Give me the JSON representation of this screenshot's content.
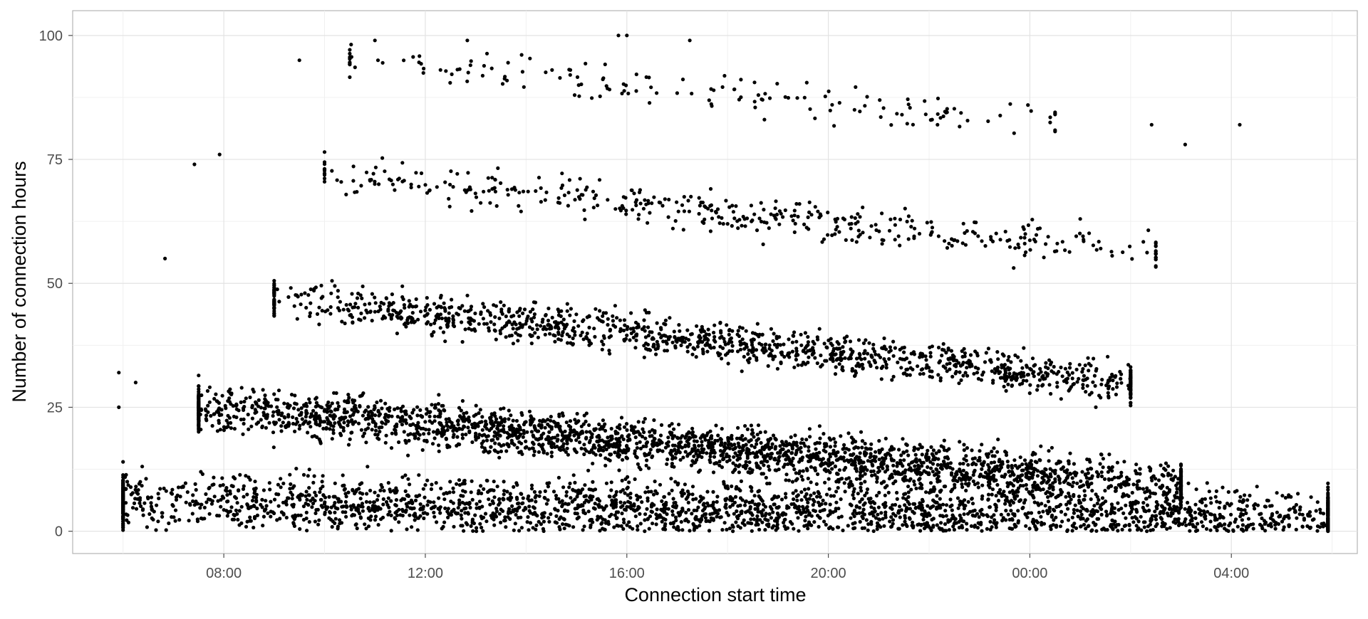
{
  "chart_data": {
    "type": "scatter",
    "title": "",
    "xlabel": "Connection start time",
    "ylabel": "Number of connection hours",
    "x_ticks": [
      "08:00",
      "12:00",
      "16:00",
      "20:00",
      "00:00",
      "04:00"
    ],
    "y_ticks": [
      "0",
      "25",
      "50",
      "75",
      "100"
    ],
    "xlim": [
      "05:00",
      "06:30 (+1 day)"
    ],
    "ylim": [
      -4.5,
      105
    ],
    "grid": true,
    "legend": "none",
    "point_color": "#000000",
    "sample_points": [
      {
        "x": "06:00",
        "y": 14
      },
      {
        "x": "06:05",
        "y": 10
      },
      {
        "x": "06:15",
        "y": 30
      },
      {
        "x": "06:50",
        "y": 55
      },
      {
        "x": "07:25",
        "y": 74
      },
      {
        "x": "07:55",
        "y": 76
      },
      {
        "x": "09:30",
        "y": 95
      },
      {
        "x": "11:00",
        "y": 99
      },
      {
        "x": "12:50",
        "y": 99
      },
      {
        "x": "15:50",
        "y": 100
      },
      {
        "x": "16:00",
        "y": 100
      },
      {
        "x": "17:15",
        "y": 99
      },
      {
        "x": "18:00",
        "y": 62
      },
      {
        "x": "18:30",
        "y": 40
      },
      {
        "x": "22:10",
        "y": 82
      },
      {
        "x": "22:45",
        "y": 34
      },
      {
        "x": "23:50",
        "y": 32
      },
      {
        "x": "00:15",
        "y": 12
      },
      {
        "x": "01:00",
        "y": 63
      },
      {
        "x": "02:25",
        "y": 82
      },
      {
        "x": "03:05",
        "y": 78
      },
      {
        "x": "04:10",
        "y": 82
      },
      {
        "x": "04:40",
        "y": 5
      },
      {
        "x": "05:55",
        "y": 32
      },
      {
        "x": "05:55",
        "y": 25
      }
    ],
    "bands": [
      {
        "name": "band-0",
        "x_range": [
          "06:00",
          "05:55 (+1 day)"
        ],
        "y_start": 6,
        "y_end": 3,
        "spread": 7,
        "density": "very high"
      },
      {
        "name": "band-1",
        "x_range": [
          "07:30",
          "03:00 (+1 day)"
        ],
        "y_start": 25,
        "y_end": 9,
        "spread": 6,
        "density": "very high"
      },
      {
        "name": "band-2",
        "x_range": [
          "09:00",
          "02:00 (+1 day)"
        ],
        "y_start": 47,
        "y_end": 30,
        "spread": 5,
        "density": "high"
      },
      {
        "name": "band-3",
        "x_range": [
          "10:00",
          "02:30 (+1 day)"
        ],
        "y_start": 72,
        "y_end": 56,
        "spread": 5,
        "density": "medium"
      },
      {
        "name": "band-4",
        "x_range": [
          "10:30",
          "00:30 (+1 day)"
        ],
        "y_start": 95,
        "y_end": 82,
        "spread": 5,
        "density": "low"
      }
    ]
  }
}
